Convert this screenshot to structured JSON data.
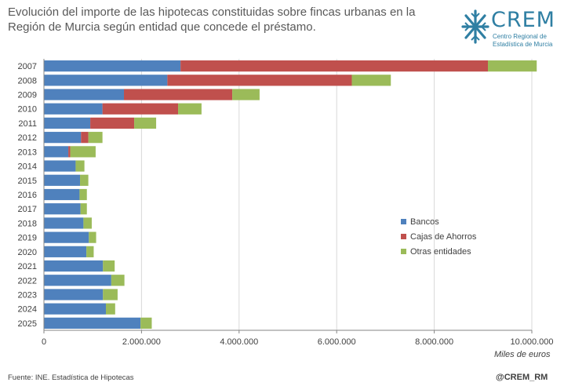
{
  "header": {
    "title_line1": "Evolución del importe de las hipotecas constituidas sobre fincas urbanas en la",
    "title_line2": "Región de Murcia según entidad que concede el préstamo."
  },
  "logo": {
    "word": "CREM",
    "sub_line1": "Centro Regional de",
    "sub_line2": "Estadística de Murcia",
    "color": "#2f7fa3"
  },
  "footer": {
    "source": "Fuente: INE. Estadística de Hipotecas",
    "handle": "@CREM_RM"
  },
  "chart_data": {
    "type": "bar",
    "orientation": "horizontal",
    "stacked": true,
    "categories": [
      "2007",
      "2008",
      "2009",
      "2010",
      "2011",
      "2012",
      "2013",
      "2014",
      "2015",
      "2016",
      "2017",
      "2018",
      "2019",
      "2020",
      "2021",
      "2022",
      "2023",
      "2024",
      "2025"
    ],
    "series": [
      {
        "name": "Bancos",
        "color": "#4f81bd",
        "values": [
          2800000,
          2530000,
          1640000,
          1200000,
          950000,
          760000,
          500000,
          650000,
          740000,
          730000,
          750000,
          810000,
          920000,
          870000,
          1210000,
          1380000,
          1210000,
          1270000,
          1980000
        ]
      },
      {
        "name": "Cajas de Ahorros",
        "color": "#c0504d",
        "values": [
          6300000,
          3780000,
          2220000,
          1550000,
          900000,
          150000,
          40000,
          0,
          0,
          0,
          0,
          0,
          0,
          0,
          0,
          0,
          0,
          0,
          0
        ]
      },
      {
        "name": "Otras entidades",
        "color": "#9bbb59",
        "values": [
          1000000,
          800000,
          560000,
          480000,
          450000,
          290000,
          520000,
          180000,
          170000,
          150000,
          130000,
          170000,
          150000,
          150000,
          240000,
          270000,
          300000,
          190000,
          230000
        ]
      }
    ],
    "xlim": [
      0,
      10000000
    ],
    "xticks": [
      0,
      2000000,
      4000000,
      6000000,
      8000000,
      10000000
    ],
    "xtick_labels": [
      "0",
      "2.000.000",
      "4.000.000",
      "6.000.000",
      "8.000.000",
      "10.000.000"
    ],
    "xlabel": "Miles de euros",
    "grid": "vertical",
    "legend_position": "right"
  }
}
